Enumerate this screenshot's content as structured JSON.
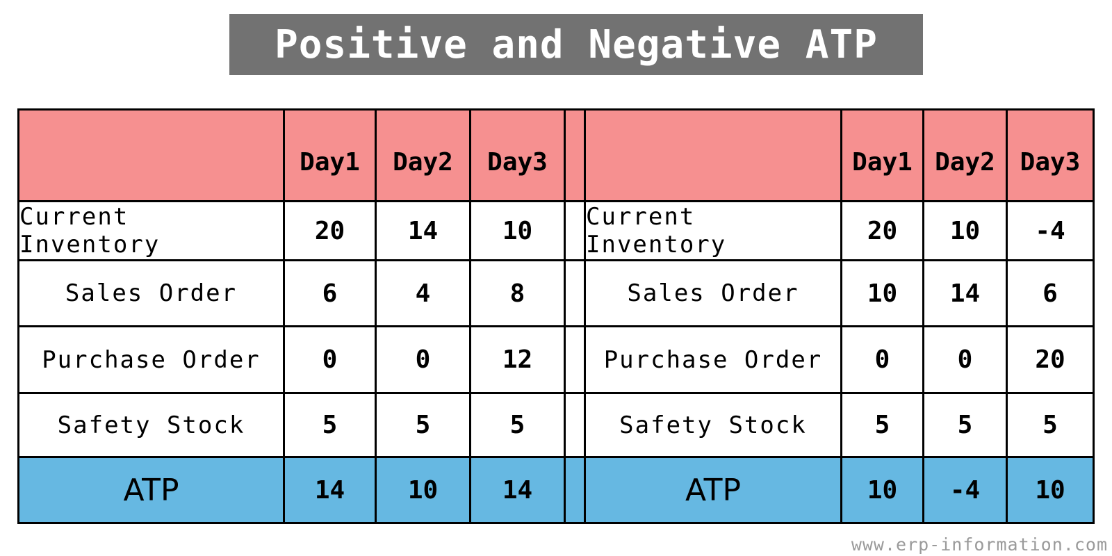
{
  "title": "Positive and Negative ATP",
  "tables": [
    {
      "header": [
        "",
        "Day1",
        "Day2",
        "Day3"
      ],
      "rows": [
        {
          "label": "Current Inventory",
          "values": [
            "20",
            "14",
            "10"
          ]
        },
        {
          "label": "Sales Order",
          "values": [
            "6",
            "4",
            "8"
          ]
        },
        {
          "label": "Purchase Order",
          "values": [
            "0",
            "0",
            "12"
          ]
        },
        {
          "label": "Safety Stock",
          "values": [
            "5",
            "5",
            "5"
          ]
        }
      ],
      "atp": {
        "label": "ATP",
        "values": [
          "14",
          "10",
          "14"
        ]
      }
    },
    {
      "header": [
        "",
        "Day1",
        "Day2",
        "Day3"
      ],
      "rows": [
        {
          "label": "Current Inventory",
          "values": [
            "20",
            "10",
            "-4"
          ]
        },
        {
          "label": "Sales Order",
          "values": [
            "10",
            "14",
            "6"
          ]
        },
        {
          "label": "Purchase Order",
          "values": [
            "0",
            "0",
            "20"
          ]
        },
        {
          "label": "Safety Stock",
          "values": [
            "5",
            "5",
            "5"
          ]
        }
      ],
      "atp": {
        "label": "ATP",
        "values": [
          "10",
          "-4",
          "10"
        ]
      }
    }
  ],
  "watermark": "www.erp-information.com",
  "colors": {
    "header_bg": "#f69090",
    "atp_bg": "#66b8e2",
    "title_bg": "#727272"
  }
}
